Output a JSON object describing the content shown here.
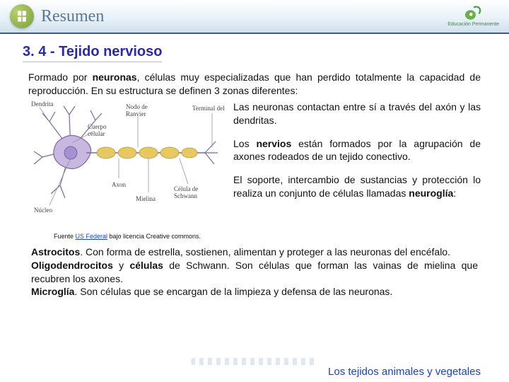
{
  "header": {
    "title": "Resumen",
    "brand_text": "Educación Permanente"
  },
  "section": {
    "heading": "3. 4 - Tejido nervioso",
    "intro_html": "Formado por <b>neuronas</b>, células muy especializadas que han perdido totalmente la capacidad de reproducción. En su estructura se definen 3 zonas diferentes:",
    "figure": {
      "labels": {
        "dendrita": "Dendrita",
        "cuerpo": "Cuerpo celular",
        "nucleo": "Núcleo",
        "axon": "Axon",
        "mielina": "Mielina",
        "nodo": "Nodo de Ranvier",
        "terminal": "Terminal del",
        "schwann": "Célula de Schwann"
      },
      "caption_prefix": "Fuente ",
      "caption_link_text": "US Federal",
      "caption_suffix": " bajo licencia Creative commons.",
      "colors": {
        "soma_fill": "#c8b8e0",
        "soma_stroke": "#7a68a8",
        "nucleus_fill": "#a890d0",
        "axon_stroke": "#7a68a8",
        "myelin_fill": "#e8c860",
        "myelin_stroke": "#b89830",
        "label_line": "#888888"
      }
    },
    "right_paragraphs": [
      "Las neuronas contactan entre sí a través del axón y las dendritas.",
      "Los <b>nervios</b> están formados por la agrupación de axones rodeados de un tejido conectivo.",
      "El soporte, intercambio de sustancias y protección lo realiza un conjunto de células llamadas <b>neuroglía</b>:"
    ],
    "glial_items": [
      {
        "term": "Astrocitos",
        "text": ". Con forma de estrella, sostienen, alimentan y proteger a las neuronas del encéfalo."
      },
      {
        "term": "Oligodendrocitos",
        "extra_bold": "células",
        "joiner": " y ",
        "extra_bold2": "de Schwann",
        "text": ". Son células que forman las vainas de mielina que recubren los axones."
      },
      {
        "term": "Microglía",
        "text": ". Son células que se encargan de la limpieza y defensa de las neuronas."
      }
    ]
  },
  "footer": "Los tejidos animales y vegetales",
  "style": {
    "title_color": "#2a2aa8",
    "body_fontsize": 14,
    "heading_fontsize": 20,
    "footer_color": "#1a3fcc"
  }
}
